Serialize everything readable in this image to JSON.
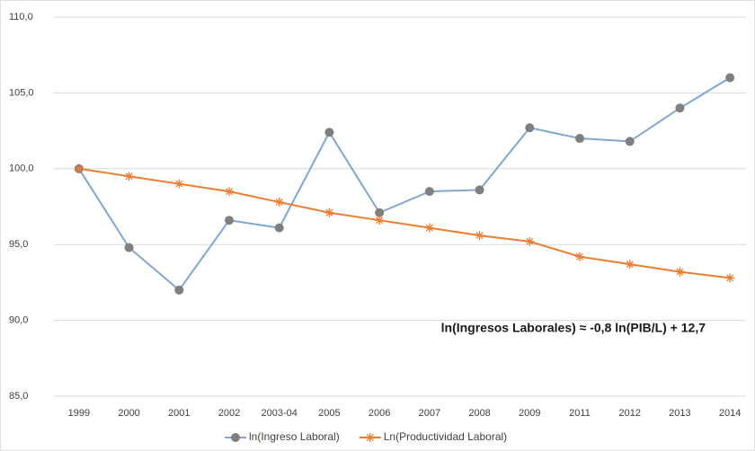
{
  "chart_data": {
    "type": "line",
    "categories": [
      "1999",
      "2000",
      "2001",
      "2002",
      "2003-04",
      "2005",
      "2006",
      "2007",
      "2008",
      "2009",
      "2011",
      "2012",
      "2013",
      "2014"
    ],
    "series": [
      {
        "name": "ln(Ingreso Laboral)",
        "color": "#7fa7d1",
        "marker_color": "#7f7f7f",
        "marker": "circle",
        "values": [
          100.0,
          94.8,
          92.0,
          96.6,
          96.1,
          102.4,
          97.1,
          98.5,
          98.6,
          102.7,
          102.0,
          101.8,
          104.0,
          106.0
        ]
      },
      {
        "name": "Ln(Productividad Laboral)",
        "color": "#ed7d31",
        "marker_color": "#ed7d31",
        "marker": "asterisk",
        "values": [
          100.0,
          99.5,
          99.0,
          98.5,
          97.8,
          97.1,
          96.6,
          96.1,
          95.6,
          95.2,
          94.2,
          93.7,
          93.2,
          92.8
        ]
      }
    ],
    "annotation": "ln(Ingresos Laborales) ≈ -0,8 ln(PIB/L) + 12,7",
    "ylim": [
      85,
      110
    ],
    "yticks": [
      {
        "value": 85,
        "label": "85,0"
      },
      {
        "value": 90,
        "label": "90,0"
      },
      {
        "value": 95,
        "label": "95,0"
      },
      {
        "value": 100,
        "label": "100,0"
      },
      {
        "value": 105,
        "label": "105,0"
      },
      {
        "value": 110,
        "label": "110,0"
      }
    ],
    "grid": true,
    "legend": "bottom"
  }
}
